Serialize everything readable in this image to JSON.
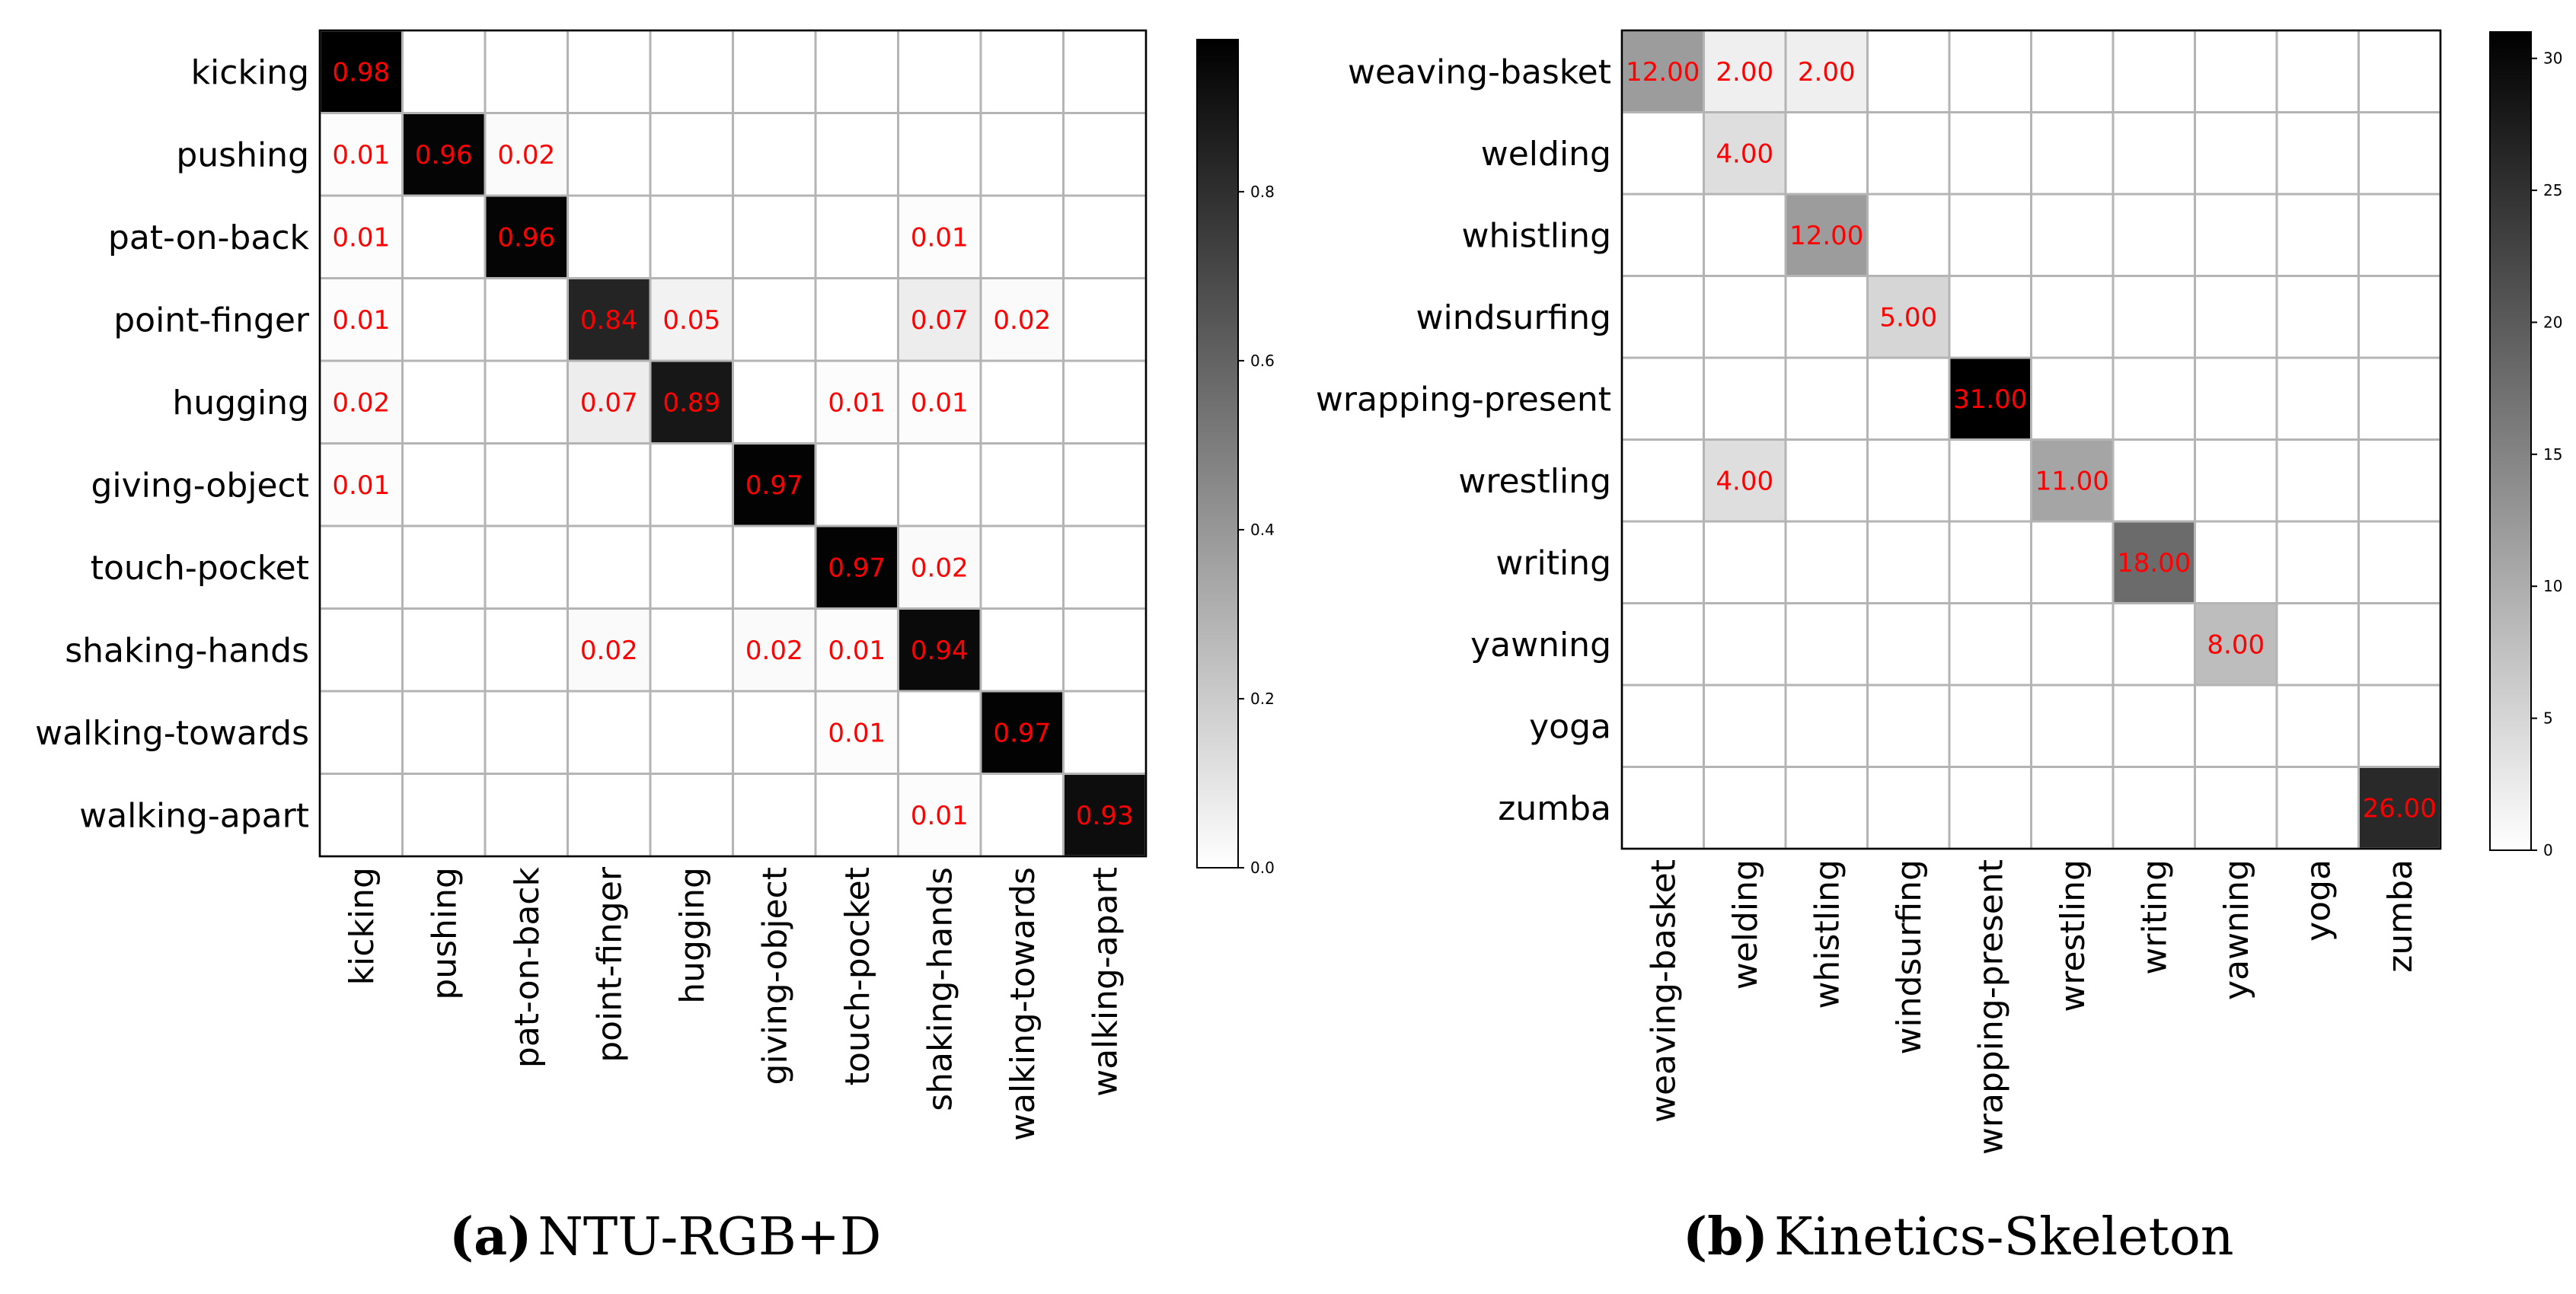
{
  "chart_data": [
    {
      "type": "heatmap",
      "panel": "a",
      "title": "NTU-RGB+D",
      "rows": [
        "kicking",
        "pushing",
        "pat-on-back",
        "point-finger",
        "hugging",
        "giving-object",
        "touch-pocket",
        "shaking-hands",
        "walking-towards",
        "walking-apart"
      ],
      "cols": [
        "kicking",
        "pushing",
        "pat-on-back",
        "point-finger",
        "hugging",
        "giving-object",
        "touch-pocket",
        "shaking-hands",
        "walking-towards",
        "walking-apart"
      ],
      "values": [
        [
          0.98,
          null,
          null,
          null,
          null,
          null,
          null,
          null,
          null,
          null
        ],
        [
          0.01,
          0.96,
          0.02,
          null,
          null,
          null,
          null,
          null,
          null,
          null
        ],
        [
          0.01,
          null,
          0.96,
          null,
          null,
          null,
          null,
          0.01,
          null,
          null
        ],
        [
          0.01,
          null,
          null,
          0.84,
          0.05,
          null,
          null,
          0.07,
          0.02,
          null
        ],
        [
          0.02,
          null,
          null,
          0.07,
          0.89,
          null,
          0.01,
          0.01,
          null,
          null
        ],
        [
          0.01,
          null,
          null,
          null,
          null,
          0.97,
          null,
          null,
          null,
          null
        ],
        [
          null,
          null,
          null,
          null,
          null,
          null,
          0.97,
          0.02,
          null,
          null
        ],
        [
          null,
          null,
          null,
          0.02,
          null,
          0.02,
          0.01,
          0.94,
          null,
          null
        ],
        [
          null,
          null,
          null,
          null,
          null,
          null,
          0.01,
          null,
          0.97,
          null
        ],
        [
          null,
          null,
          null,
          null,
          null,
          null,
          null,
          0.01,
          null,
          0.93
        ]
      ],
      "value_format": "0.00",
      "colorscale": "Greys",
      "annotation_color": "#ff0000",
      "colorbar": {
        "min": 0.0,
        "max": 0.98,
        "ticks": [
          0.0,
          0.2,
          0.4,
          0.6,
          0.8
        ],
        "tick_labels": [
          "0.0",
          "0.2",
          "0.4",
          "0.6",
          "0.8"
        ]
      },
      "grid": true
    },
    {
      "type": "heatmap",
      "panel": "b",
      "title": "Kinetics-Skeleton",
      "rows": [
        "weaving-basket",
        "welding",
        "whistling",
        "windsurfing",
        "wrapping-present",
        "wrestling",
        "writing",
        "yawning",
        "yoga",
        "zumba"
      ],
      "cols": [
        "weaving-basket",
        "welding",
        "whistling",
        "windsurfing",
        "wrapping-present",
        "wrestling",
        "writing",
        "yawning",
        "yoga",
        "zumba"
      ],
      "values": [
        [
          12.0,
          2.0,
          2.0,
          null,
          null,
          null,
          null,
          null,
          null,
          null
        ],
        [
          null,
          4.0,
          null,
          null,
          null,
          null,
          null,
          null,
          null,
          null
        ],
        [
          null,
          null,
          12.0,
          null,
          null,
          null,
          null,
          null,
          null,
          null
        ],
        [
          null,
          null,
          null,
          5.0,
          null,
          null,
          null,
          null,
          null,
          null
        ],
        [
          null,
          null,
          null,
          null,
          31.0,
          null,
          null,
          null,
          null,
          null
        ],
        [
          null,
          4.0,
          null,
          null,
          null,
          11.0,
          null,
          null,
          null,
          null
        ],
        [
          null,
          null,
          null,
          null,
          null,
          null,
          18.0,
          null,
          null,
          null
        ],
        [
          null,
          null,
          null,
          null,
          null,
          null,
          null,
          8.0,
          null,
          null
        ],
        [
          null,
          null,
          null,
          null,
          null,
          null,
          null,
          null,
          null,
          null
        ],
        [
          null,
          null,
          null,
          null,
          null,
          null,
          null,
          null,
          null,
          26.0
        ]
      ],
      "value_format": "0.00",
      "colorscale": "Greys",
      "annotation_color": "#ff0000",
      "colorbar": {
        "min": 0,
        "max": 31,
        "ticks": [
          0,
          5,
          10,
          15,
          20,
          25,
          30
        ],
        "tick_labels": [
          "0",
          "5",
          "10",
          "15",
          "20",
          "25",
          "30"
        ]
      },
      "grid": true
    }
  ],
  "captions": {
    "a": {
      "label": "(a)",
      "text": "NTU-RGB+D"
    },
    "b": {
      "label": "(b)",
      "text": "Kinetics-Skeleton"
    }
  }
}
